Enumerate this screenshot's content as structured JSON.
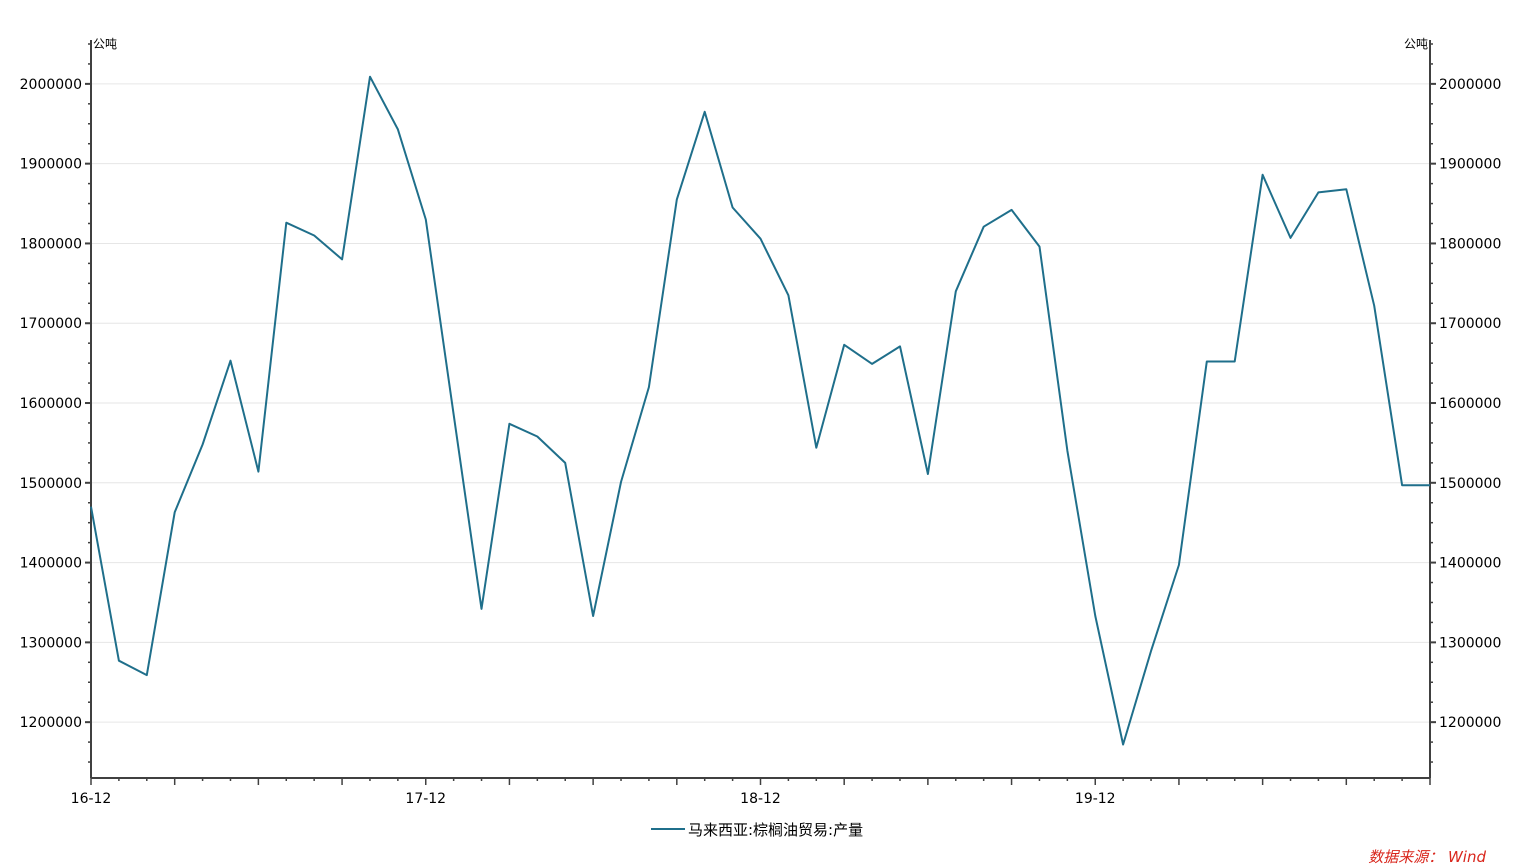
{
  "chart_data": {
    "type": "line",
    "title": "",
    "unit_left": "公吨",
    "unit_right": "公吨",
    "xlabel": "",
    "ylabel": "",
    "x_tick_labels": [
      "16-12",
      "17-12",
      "18-12",
      "19-12"
    ],
    "y_ticks": [
      1200000,
      1300000,
      1400000,
      1500000,
      1600000,
      1700000,
      1800000,
      1900000,
      2000000
    ],
    "y_tick_labels": [
      "1200000",
      "1300000",
      "1400000",
      "1500000",
      "1600000",
      "1700000",
      "1800000",
      "1900000",
      "2000000"
    ],
    "ylim": [
      1130000,
      2055000
    ],
    "grid": "horizontal",
    "legend_position": "bottom-center",
    "series": [
      {
        "name": "马来西亚:棕榈油贸易:产量",
        "color": "#1f6f8b",
        "x": [
          "2016-12",
          "2017-01",
          "2017-02",
          "2017-03",
          "2017-04",
          "2017-05",
          "2017-06",
          "2017-07",
          "2017-08",
          "2017-09",
          "2017-10",
          "2017-11",
          "2017-12",
          "2018-01",
          "2018-02",
          "2018-03",
          "2018-04",
          "2018-05",
          "2018-06",
          "2018-07",
          "2018-08",
          "2018-09",
          "2018-10",
          "2018-11",
          "2018-12",
          "2019-01",
          "2019-02",
          "2019-03",
          "2019-04",
          "2019-05",
          "2019-06",
          "2019-07",
          "2019-08",
          "2019-09",
          "2019-10",
          "2019-11",
          "2019-12",
          "2020-01",
          "2020-02",
          "2020-03",
          "2020-04",
          "2020-05",
          "2020-06",
          "2020-07",
          "2020-08",
          "2020-09",
          "2020-10",
          "2020-11",
          "2020-12"
        ],
        "values": [
          1470000,
          1277000,
          1259000,
          1463000,
          1548000,
          1653000,
          1514000,
          1826000,
          1810000,
          1780000,
          2009000,
          1943000,
          1830000,
          1586000,
          1342000,
          1574000,
          1558000,
          1525000,
          1333000,
          1501000,
          1620000,
          1855000,
          1965000,
          1845000,
          1806000,
          1735000,
          1544000,
          1673000,
          1649000,
          1671000,
          1511000,
          1740000,
          1821000,
          1842000,
          1796000,
          1540000,
          1333000,
          1172000,
          1289000,
          1397000,
          1652000,
          1652000,
          1886000,
          1807000,
          1864000,
          1868000,
          1722000,
          1497000,
          1497000
        ]
      }
    ]
  },
  "footer": {
    "source": "数据来源：  Wind"
  }
}
